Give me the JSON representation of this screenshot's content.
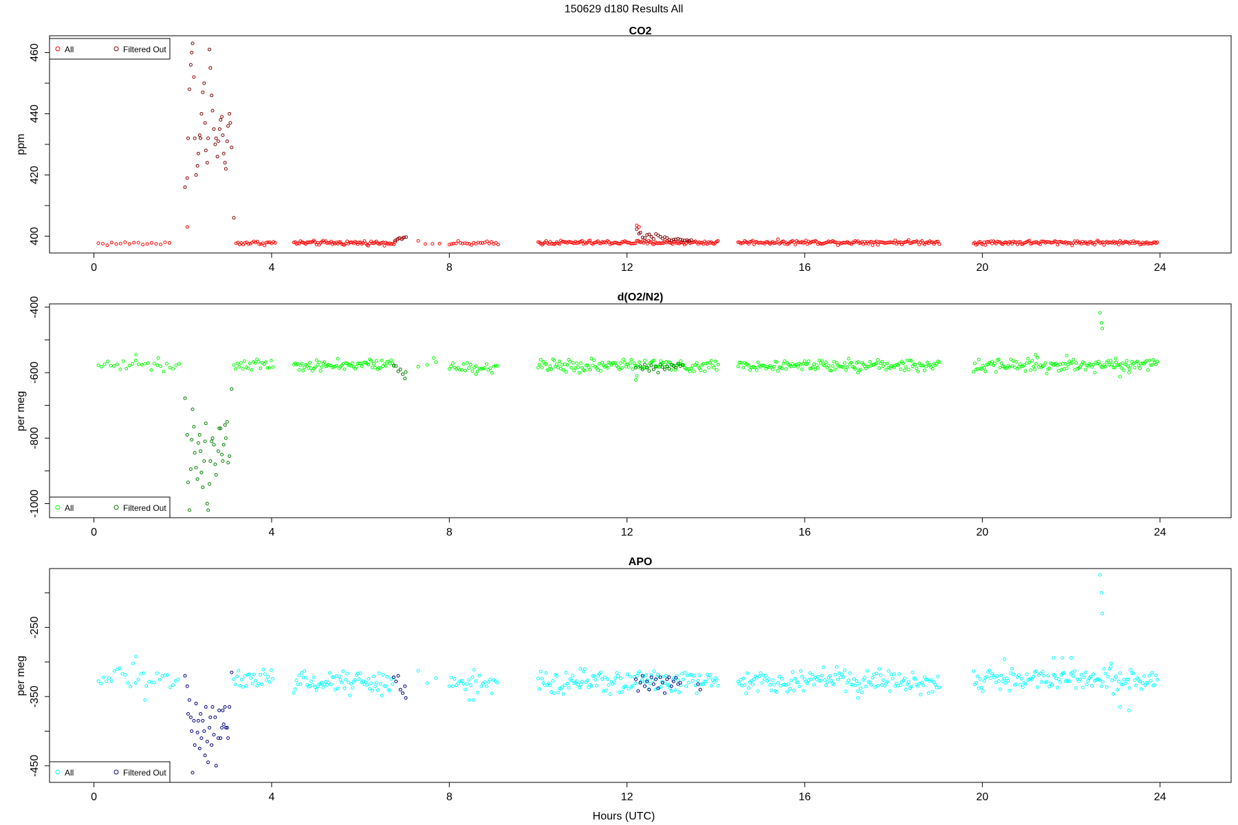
{
  "figure": {
    "title": "150629   d180   Results All",
    "xlabel": "Hours (UTC)"
  },
  "chart_data": [
    {
      "type": "scatter",
      "title": "CO2",
      "ylabel": "ppm",
      "xlim": [
        -1.0,
        25.6
      ],
      "ylim": [
        394.5,
        465.5
      ],
      "xticks": [
        0,
        4,
        8,
        12,
        16,
        20,
        24
      ],
      "yticks": [
        400,
        420,
        440,
        460
      ],
      "grid": false,
      "legend": {
        "position": "top-left",
        "entries": [
          "All",
          "Filtered Out"
        ]
      },
      "colors": {
        "all": "#ff0000",
        "filtered": "#7f0000"
      },
      "noise": 0.35,
      "segments": [
        {
          "start": 0.1,
          "end": 1.75,
          "step": 0.1,
          "base": 397.6
        },
        {
          "start": 3.2,
          "end": 4.1,
          "step": 0.04,
          "base": 397.8
        },
        {
          "start": 4.5,
          "end": 6.8,
          "step": 0.03,
          "base": 397.8
        },
        {
          "start": 7.3,
          "end": 7.8,
          "step": 0.16,
          "base": 397.6
        },
        {
          "start": 8.0,
          "end": 9.1,
          "step": 0.05,
          "base": 397.6
        },
        {
          "start": 10.0,
          "end": 14.05,
          "step": 0.03,
          "base": 397.9
        },
        {
          "start": 14.5,
          "end": 19.05,
          "step": 0.03,
          "base": 398.0
        },
        {
          "start": 19.8,
          "end": 23.95,
          "step": 0.03,
          "base": 397.9
        }
      ],
      "all_points": [
        [
          2.1,
          403.0
        ],
        [
          12.22,
          403.5
        ],
        [
          12.27,
          403.0
        ],
        [
          6.85,
          399.2
        ],
        [
          6.95,
          399.4
        ]
      ],
      "filtered_points": [
        [
          2.05,
          416
        ],
        [
          2.1,
          419
        ],
        [
          2.12,
          432
        ],
        [
          2.15,
          448
        ],
        [
          2.18,
          456
        ],
        [
          2.2,
          460
        ],
        [
          2.22,
          463
        ],
        [
          2.25,
          452
        ],
        [
          2.27,
          432
        ],
        [
          2.3,
          420
        ],
        [
          2.33,
          423
        ],
        [
          2.35,
          427
        ],
        [
          2.38,
          433
        ],
        [
          2.4,
          432
        ],
        [
          2.42,
          440
        ],
        [
          2.45,
          447
        ],
        [
          2.48,
          450
        ],
        [
          2.5,
          437
        ],
        [
          2.52,
          428
        ],
        [
          2.55,
          424
        ],
        [
          2.57,
          432
        ],
        [
          2.6,
          461
        ],
        [
          2.62,
          455
        ],
        [
          2.65,
          446
        ],
        [
          2.67,
          441
        ],
        [
          2.7,
          435
        ],
        [
          2.73,
          430
        ],
        [
          2.75,
          432
        ],
        [
          2.78,
          426
        ],
        [
          2.8,
          431
        ],
        [
          2.83,
          435
        ],
        [
          2.85,
          438
        ],
        [
          2.88,
          439
        ],
        [
          2.9,
          433
        ],
        [
          2.92,
          427
        ],
        [
          2.95,
          424
        ],
        [
          2.97,
          422
        ],
        [
          3.0,
          431
        ],
        [
          3.02,
          436
        ],
        [
          3.05,
          440
        ],
        [
          3.07,
          437
        ],
        [
          3.1,
          429
        ],
        [
          3.15,
          406
        ],
        [
          6.78,
          398.6
        ],
        [
          6.83,
          398.9
        ],
        [
          6.88,
          399.4
        ],
        [
          6.93,
          399.0
        ],
        [
          6.98,
          399.6
        ],
        [
          7.03,
          399.7
        ],
        [
          12.22,
          402.3
        ],
        [
          12.27,
          400.8
        ],
        [
          12.3,
          401.2
        ],
        [
          12.35,
          399.6
        ],
        [
          12.4,
          399.4
        ],
        [
          12.45,
          400.4
        ],
        [
          12.5,
          400.6
        ],
        [
          12.55,
          399.8
        ],
        [
          12.6,
          399.1
        ],
        [
          12.65,
          400.7
        ],
        [
          12.7,
          400.3
        ],
        [
          12.75,
          399.8
        ],
        [
          12.8,
          399.2
        ],
        [
          12.85,
          399.7
        ],
        [
          12.9,
          399.4
        ],
        [
          12.95,
          398.8
        ],
        [
          13.0,
          398.6
        ],
        [
          13.05,
          398.9
        ],
        [
          13.1,
          399.0
        ],
        [
          13.15,
          399.1
        ],
        [
          13.2,
          398.9
        ],
        [
          13.25,
          398.7
        ],
        [
          13.3,
          398.6
        ],
        [
          13.35,
          398.7
        ],
        [
          13.4,
          398.5
        ],
        [
          13.45,
          398.7
        ]
      ]
    },
    {
      "type": "scatter",
      "title": "d(O2/N2)",
      "ylabel": "per meg",
      "xlim": [
        -1.0,
        25.6
      ],
      "ylim": [
        -1043,
        -390
      ],
      "xticks": [
        0,
        4,
        8,
        12,
        16,
        20,
        24
      ],
      "yticks": [
        -400,
        -600,
        -800,
        -1000
      ],
      "grid": false,
      "legend": {
        "position": "bottom-left",
        "entries": [
          "All",
          "Filtered Out"
        ]
      },
      "colors": {
        "all": "#00ff00",
        "filtered": "#007f00"
      },
      "noise": 9,
      "segments": [
        {
          "start": 0.1,
          "end": 1.95,
          "step": 0.07,
          "base": -576
        },
        {
          "start": 3.15,
          "end": 4.05,
          "step": 0.04,
          "base": -575
        },
        {
          "start": 4.5,
          "end": 6.75,
          "step": 0.03,
          "base": -578
        },
        {
          "start": 7.3,
          "end": 7.7,
          "step": 0.2,
          "base": -572
        },
        {
          "start": 8.0,
          "end": 9.1,
          "step": 0.04,
          "base": -582
        },
        {
          "start": 10.0,
          "end": 14.05,
          "step": 0.03,
          "base": -578
        },
        {
          "start": 14.5,
          "end": 19.05,
          "step": 0.03,
          "base": -577
        },
        {
          "start": 19.8,
          "end": 23.95,
          "step": 0.03,
          "base": -577
        }
      ],
      "all_points": [
        [
          0.95,
          -545
        ],
        [
          1.45,
          -555
        ],
        [
          7.65,
          -555
        ],
        [
          8.6,
          -605
        ],
        [
          21.2,
          -546
        ],
        [
          21.9,
          -548
        ],
        [
          22.65,
          -417
        ],
        [
          22.68,
          -448
        ],
        [
          22.7,
          -465
        ],
        [
          23.0,
          -557
        ],
        [
          23.1,
          -612
        ],
        [
          23.3,
          -600
        ],
        [
          12.2,
          -622
        ],
        [
          12.22,
          -610
        ],
        [
          17.2,
          -600
        ]
      ],
      "filtered_points": [
        [
          2.05,
          -678
        ],
        [
          2.1,
          -790
        ],
        [
          2.12,
          -935
        ],
        [
          2.15,
          -1020
        ],
        [
          2.18,
          -895
        ],
        [
          2.2,
          -805
        ],
        [
          2.22,
          -712
        ],
        [
          2.25,
          -765
        ],
        [
          2.27,
          -845
        ],
        [
          2.3,
          -890
        ],
        [
          2.33,
          -925
        ],
        [
          2.35,
          -815
        ],
        [
          2.38,
          -790
        ],
        [
          2.4,
          -840
        ],
        [
          2.42,
          -905
        ],
        [
          2.45,
          -950
        ],
        [
          2.48,
          -870
        ],
        [
          2.5,
          -810
        ],
        [
          2.52,
          -755
        ],
        [
          2.55,
          -1000
        ],
        [
          2.57,
          -1020
        ],
        [
          2.6,
          -940
        ],
        [
          2.62,
          -870
        ],
        [
          2.65,
          -810
        ],
        [
          2.67,
          -800
        ],
        [
          2.7,
          -820
        ],
        [
          2.73,
          -880
        ],
        [
          2.75,
          -912
        ],
        [
          2.8,
          -840
        ],
        [
          2.82,
          -770
        ],
        [
          2.85,
          -770
        ],
        [
          2.88,
          -850
        ],
        [
          2.9,
          -870
        ],
        [
          2.92,
          -820
        ],
        [
          2.95,
          -760
        ],
        [
          2.97,
          -800
        ],
        [
          3.0,
          -750
        ],
        [
          3.02,
          -875
        ],
        [
          3.05,
          -855
        ],
        [
          3.1,
          -650
        ],
        [
          6.75,
          -578
        ],
        [
          6.8,
          -580
        ],
        [
          6.85,
          -596
        ],
        [
          6.9,
          -590
        ],
        [
          6.95,
          -605
        ],
        [
          7.0,
          -618
        ],
        [
          7.02,
          -598
        ],
        [
          12.2,
          -585
        ],
        [
          12.3,
          -580
        ],
        [
          12.35,
          -590
        ],
        [
          12.4,
          -575
        ],
        [
          12.45,
          -585
        ],
        [
          12.5,
          -595
        ],
        [
          12.55,
          -578
        ],
        [
          12.6,
          -590
        ],
        [
          12.65,
          -582
        ],
        [
          12.7,
          -600
        ],
        [
          12.75,
          -575
        ],
        [
          12.8,
          -583
        ],
        [
          12.85,
          -590
        ],
        [
          12.9,
          -580
        ],
        [
          12.95,
          -588
        ],
        [
          13.0,
          -576
        ],
        [
          13.05,
          -580
        ],
        [
          13.1,
          -585
        ],
        [
          13.15,
          -572
        ],
        [
          13.2,
          -580
        ],
        [
          13.25,
          -577
        ]
      ]
    },
    {
      "type": "scatter",
      "title": "APO",
      "ylabel": "per meg",
      "xlim": [
        -1.0,
        25.6
      ],
      "ylim": [
        -474,
        -165
      ],
      "xticks": [
        0,
        4,
        8,
        12,
        16,
        20,
        24
      ],
      "yticks": [
        -250,
        -350,
        -450
      ],
      "grid": false,
      "legend": {
        "position": "bottom-left",
        "entries": [
          "All",
          "Filtered Out"
        ]
      },
      "colors": {
        "all": "#00ffff",
        "filtered": "#00007f"
      },
      "noise": 8,
      "segments": [
        {
          "start": 0.1,
          "end": 1.95,
          "step": 0.06,
          "base": -322
        },
        {
          "start": 3.15,
          "end": 4.05,
          "step": 0.035,
          "base": -326
        },
        {
          "start": 4.5,
          "end": 6.75,
          "step": 0.03,
          "base": -329
        },
        {
          "start": 7.3,
          "end": 7.7,
          "step": 0.2,
          "base": -318
        },
        {
          "start": 8.0,
          "end": 9.1,
          "step": 0.04,
          "base": -330
        },
        {
          "start": 10.0,
          "end": 14.05,
          "step": 0.03,
          "base": -328
        },
        {
          "start": 14.5,
          "end": 19.05,
          "step": 0.03,
          "base": -327
        },
        {
          "start": 19.8,
          "end": 23.95,
          "step": 0.03,
          "base": -324
        }
      ],
      "all_points": [
        [
          0.95,
          -292
        ],
        [
          1.15,
          -355
        ],
        [
          8.45,
          -355
        ],
        [
          8.55,
          -355
        ],
        [
          10.95,
          -310
        ],
        [
          20.5,
          -296
        ],
        [
          21.6,
          -294
        ],
        [
          21.8,
          -294
        ],
        [
          22.0,
          -294
        ],
        [
          22.65,
          -174
        ],
        [
          22.68,
          -200
        ],
        [
          22.7,
          -230
        ],
        [
          22.9,
          -302
        ],
        [
          23.1,
          -365
        ],
        [
          23.3,
          -370
        ],
        [
          17.2,
          -352
        ]
      ],
      "filtered_points": [
        [
          2.05,
          -320
        ],
        [
          2.1,
          -335
        ],
        [
          2.12,
          -375
        ],
        [
          2.15,
          -355
        ],
        [
          2.18,
          -380
        ],
        [
          2.2,
          -400
        ],
        [
          2.22,
          -460
        ],
        [
          2.25,
          -385
        ],
        [
          2.27,
          -420
        ],
        [
          2.3,
          -360
        ],
        [
          2.33,
          -402
        ],
        [
          2.35,
          -385
        ],
        [
          2.38,
          -425
        ],
        [
          2.4,
          -375
        ],
        [
          2.42,
          -410
        ],
        [
          2.45,
          -385
        ],
        [
          2.48,
          -400
        ],
        [
          2.5,
          -435
        ],
        [
          2.52,
          -365
        ],
        [
          2.55,
          -415
        ],
        [
          2.57,
          -445
        ],
        [
          2.6,
          -395
        ],
        [
          2.62,
          -380
        ],
        [
          2.65,
          -420
        ],
        [
          2.67,
          -365
        ],
        [
          2.7,
          -405
        ],
        [
          2.73,
          -380
        ],
        [
          2.75,
          -450
        ],
        [
          2.8,
          -410
        ],
        [
          2.82,
          -370
        ],
        [
          2.85,
          -410
        ],
        [
          2.88,
          -395
        ],
        [
          2.9,
          -370
        ],
        [
          2.92,
          -390
        ],
        [
          2.95,
          -365
        ],
        [
          2.97,
          -395
        ],
        [
          3.0,
          -395
        ],
        [
          3.02,
          -410
        ],
        [
          3.05,
          -365
        ],
        [
          3.1,
          -315
        ],
        [
          6.75,
          -322
        ],
        [
          6.8,
          -328
        ],
        [
          6.85,
          -320
        ],
        [
          6.9,
          -340
        ],
        [
          6.95,
          -345
        ],
        [
          7.0,
          -335
        ],
        [
          7.02,
          -352
        ],
        [
          12.2,
          -325
        ],
        [
          12.25,
          -342
        ],
        [
          12.3,
          -330
        ],
        [
          12.35,
          -320
        ],
        [
          12.4,
          -335
        ],
        [
          12.45,
          -328
        ],
        [
          12.5,
          -340
        ],
        [
          12.55,
          -322
        ],
        [
          12.6,
          -332
        ],
        [
          12.65,
          -325
        ],
        [
          12.7,
          -338
        ],
        [
          12.75,
          -322
        ],
        [
          12.8,
          -330
        ],
        [
          12.85,
          -345
        ],
        [
          12.9,
          -325
        ],
        [
          12.95,
          -322
        ],
        [
          13.0,
          -335
        ],
        [
          13.05,
          -328
        ],
        [
          13.1,
          -323
        ],
        [
          13.15,
          -332
        ],
        [
          13.2,
          -330
        ],
        [
          13.6,
          -332
        ],
        [
          13.65,
          -340
        ]
      ]
    }
  ]
}
